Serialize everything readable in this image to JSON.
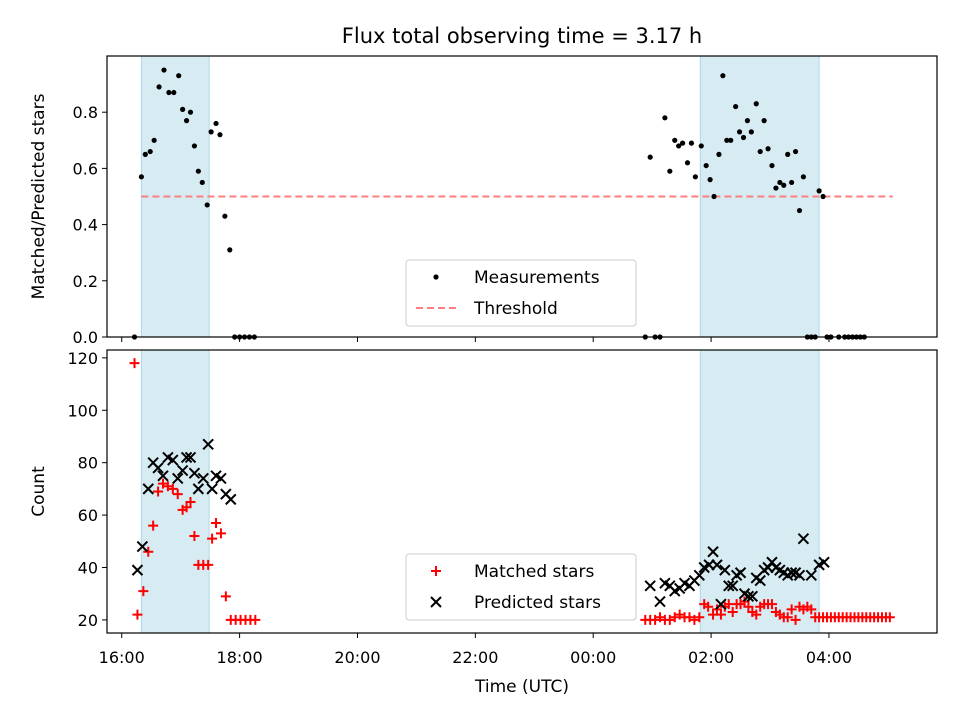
{
  "title": "Flux total observing time = 3.17 h",
  "xlabel": "Time (UTC)",
  "chart_data": [
    {
      "type": "scatter",
      "ylabel": "Matched/Predicted stars",
      "ylim": [
        0,
        1.0
      ],
      "yticks": [
        0.0,
        0.2,
        0.4,
        0.6,
        0.8
      ],
      "ytick_labels": [
        "0.0",
        "0.2",
        "0.4",
        "0.6",
        "0.8"
      ],
      "xlim": [
        "15:45",
        "05:50"
      ],
      "shaded_spans": [
        [
          "16:20",
          "17:29"
        ],
        [
          "01:49",
          "03:50"
        ]
      ],
      "shade_color": "#add8e6",
      "threshold": {
        "name": "Threshold",
        "value": 0.5,
        "x_range": [
          "16:20",
          "05:05"
        ],
        "color": "#ff7f7f",
        "style": "dashed"
      },
      "legend": {
        "position": "lower-center",
        "entries": [
          "Measurements",
          "Threshold"
        ]
      },
      "series": [
        {
          "name": "Measurements",
          "marker": "dot",
          "color": "#000000",
          "points": [
            [
              "16:13",
              0.0
            ],
            [
              "16:20",
              0.57
            ],
            [
              "16:24",
              0.65
            ],
            [
              "16:29",
              0.66
            ],
            [
              "16:33",
              0.7
            ],
            [
              "16:38",
              0.89
            ],
            [
              "16:43",
              0.95
            ],
            [
              "16:48",
              0.87
            ],
            [
              "16:53",
              0.87
            ],
            [
              "16:58",
              0.93
            ],
            [
              "17:02",
              0.81
            ],
            [
              "17:06",
              0.77
            ],
            [
              "17:10",
              0.8
            ],
            [
              "17:14",
              0.68
            ],
            [
              "17:18",
              0.59
            ],
            [
              "17:22",
              0.55
            ],
            [
              "17:27",
              0.47
            ],
            [
              "17:31",
              0.73
            ],
            [
              "17:36",
              0.76
            ],
            [
              "17:40",
              0.72
            ],
            [
              "17:45",
              0.43
            ],
            [
              "17:50",
              0.31
            ],
            [
              "17:55",
              0.0
            ],
            [
              "18:00",
              0.0
            ],
            [
              "18:05",
              0.0
            ],
            [
              "18:10",
              0.0
            ],
            [
              "18:15",
              0.0
            ],
            [
              "00:53",
              0.0
            ],
            [
              "00:58",
              0.64
            ],
            [
              "01:03",
              0.0
            ],
            [
              "01:08",
              0.0
            ],
            [
              "01:13",
              0.78
            ],
            [
              "01:18",
              0.59
            ],
            [
              "01:23",
              0.7
            ],
            [
              "01:27",
              0.68
            ],
            [
              "01:31",
              0.69
            ],
            [
              "01:36",
              0.62
            ],
            [
              "01:40",
              0.69
            ],
            [
              "01:44",
              0.57
            ],
            [
              "01:50",
              0.68
            ],
            [
              "01:55",
              0.61
            ],
            [
              "01:59",
              0.56
            ],
            [
              "02:03",
              0.5
            ],
            [
              "02:08",
              0.65
            ],
            [
              "02:12",
              0.93
            ],
            [
              "02:16",
              0.7
            ],
            [
              "02:20",
              0.7
            ],
            [
              "02:25",
              0.82
            ],
            [
              "02:29",
              0.73
            ],
            [
              "02:33",
              0.71
            ],
            [
              "02:37",
              0.77
            ],
            [
              "02:41",
              0.73
            ],
            [
              "02:46",
              0.83
            ],
            [
              "02:50",
              0.66
            ],
            [
              "02:54",
              0.77
            ],
            [
              "02:58",
              0.67
            ],
            [
              "03:02",
              0.61
            ],
            [
              "03:06",
              0.53
            ],
            [
              "03:10",
              0.55
            ],
            [
              "03:14",
              0.54
            ],
            [
              "03:18",
              0.65
            ],
            [
              "03:22",
              0.55
            ],
            [
              "03:26",
              0.66
            ],
            [
              "03:30",
              0.45
            ],
            [
              "03:34",
              0.57
            ],
            [
              "03:38",
              0.0
            ],
            [
              "03:42",
              0.0
            ],
            [
              "03:46",
              0.0
            ],
            [
              "03:50",
              0.52
            ],
            [
              "03:54",
              0.5
            ],
            [
              "03:58",
              0.0
            ],
            [
              "04:02",
              0.0
            ],
            [
              "04:10",
              0.0
            ],
            [
              "04:16",
              0.0
            ],
            [
              "04:20",
              0.0
            ],
            [
              "04:24",
              0.0
            ],
            [
              "04:28",
              0.0
            ],
            [
              "04:32",
              0.0
            ],
            [
              "04:36",
              0.0
            ]
          ]
        }
      ]
    },
    {
      "type": "scatter",
      "ylabel": "Count",
      "ylim": [
        15,
        123
      ],
      "yticks": [
        20,
        40,
        60,
        80,
        100,
        120
      ],
      "ytick_labels": [
        "20",
        "40",
        "60",
        "80",
        "100",
        "120"
      ],
      "xlim": [
        "15:45",
        "05:50"
      ],
      "xticks": [
        "16:00",
        "18:00",
        "20:00",
        "22:00",
        "00:00",
        "02:00",
        "04:00"
      ],
      "xtick_labels": [
        "16:00",
        "18:00",
        "20:00",
        "22:00",
        "00:00",
        "02:00",
        "04:00"
      ],
      "shaded_spans": [
        [
          "16:20",
          "17:29"
        ],
        [
          "01:49",
          "03:50"
        ]
      ],
      "shade_color": "#add8e6",
      "legend": {
        "position": "lower-center",
        "entries": [
          "Matched stars",
          "Predicted stars"
        ]
      },
      "series": [
        {
          "name": "Matched stars",
          "marker": "plus",
          "color": "#ff0000",
          "points": [
            [
              "16:13",
              118
            ],
            [
              "16:16",
              22
            ],
            [
              "16:22",
              31
            ],
            [
              "16:27",
              46
            ],
            [
              "16:32",
              56
            ],
            [
              "16:37",
              69
            ],
            [
              "16:42",
              72
            ],
            [
              "16:47",
              71
            ],
            [
              "16:52",
              70
            ],
            [
              "16:57",
              68
            ],
            [
              "17:02",
              62
            ],
            [
              "17:06",
              63
            ],
            [
              "17:10",
              65
            ],
            [
              "17:14",
              52
            ],
            [
              "17:18",
              41
            ],
            [
              "17:23",
              41
            ],
            [
              "17:28",
              41
            ],
            [
              "17:32",
              51
            ],
            [
              "17:36",
              57
            ],
            [
              "17:41",
              53
            ],
            [
              "17:46",
              29
            ],
            [
              "17:51",
              20
            ],
            [
              "17:56",
              20
            ],
            [
              "18:01",
              20
            ],
            [
              "18:06",
              20
            ],
            [
              "18:11",
              20
            ],
            [
              "18:16",
              20
            ],
            [
              "00:53",
              20
            ],
            [
              "00:58",
              20
            ],
            [
              "01:03",
              20
            ],
            [
              "01:08",
              21
            ],
            [
              "01:13",
              20
            ],
            [
              "01:18",
              20
            ],
            [
              "01:23",
              21
            ],
            [
              "01:28",
              22
            ],
            [
              "01:33",
              21
            ],
            [
              "01:38",
              21
            ],
            [
              "01:43",
              20
            ],
            [
              "01:48",
              21
            ],
            [
              "01:53",
              26
            ],
            [
              "01:57",
              25
            ],
            [
              "02:02",
              22
            ],
            [
              "02:06",
              24
            ],
            [
              "02:10",
              22
            ],
            [
              "02:14",
              25
            ],
            [
              "02:18",
              26
            ],
            [
              "02:22",
              23
            ],
            [
              "02:26",
              26
            ],
            [
              "02:30",
              26
            ],
            [
              "02:34",
              27
            ],
            [
              "02:38",
              25
            ],
            [
              "02:42",
              23
            ],
            [
              "02:46",
              22
            ],
            [
              "02:50",
              25
            ],
            [
              "02:54",
              26
            ],
            [
              "02:58",
              26
            ],
            [
              "03:02",
              26
            ],
            [
              "03:06",
              23
            ],
            [
              "03:10",
              22
            ],
            [
              "03:14",
              21
            ],
            [
              "03:18",
              21
            ],
            [
              "03:22",
              24
            ],
            [
              "03:26",
              20
            ],
            [
              "03:30",
              25
            ],
            [
              "03:34",
              24
            ],
            [
              "03:38",
              25
            ],
            [
              "03:42",
              24
            ],
            [
              "03:46",
              21
            ],
            [
              "03:50",
              21
            ],
            [
              "03:54",
              21
            ],
            [
              "03:58",
              21
            ],
            [
              "04:02",
              21
            ],
            [
              "04:06",
              21
            ],
            [
              "04:10",
              21
            ],
            [
              "04:14",
              21
            ],
            [
              "04:18",
              21
            ],
            [
              "04:22",
              21
            ],
            [
              "04:26",
              21
            ],
            [
              "04:30",
              21
            ],
            [
              "04:34",
              21
            ],
            [
              "04:38",
              21
            ],
            [
              "04:42",
              21
            ],
            [
              "04:46",
              21
            ],
            [
              "04:50",
              21
            ],
            [
              "04:54",
              21
            ],
            [
              "04:58",
              21
            ],
            [
              "05:02",
              21
            ]
          ]
        },
        {
          "name": "Predicted stars",
          "marker": "x",
          "color": "#000000",
          "points": [
            [
              "16:16",
              39
            ],
            [
              "16:21",
              48
            ],
            [
              "16:27",
              70
            ],
            [
              "16:32",
              80
            ],
            [
              "16:37",
              78
            ],
            [
              "16:42",
              75
            ],
            [
              "16:47",
              82
            ],
            [
              "16:52",
              81
            ],
            [
              "16:57",
              74
            ],
            [
              "17:02",
              77
            ],
            [
              "17:06",
              82
            ],
            [
              "17:10",
              82
            ],
            [
              "17:14",
              76
            ],
            [
              "17:18",
              70
            ],
            [
              "17:23",
              74
            ],
            [
              "17:28",
              87
            ],
            [
              "17:32",
              70
            ],
            [
              "17:36",
              75
            ],
            [
              "17:41",
              74
            ],
            [
              "17:46",
              68
            ],
            [
              "17:51",
              66
            ],
            [
              "00:58",
              33
            ],
            [
              "01:08",
              27
            ],
            [
              "01:13",
              34
            ],
            [
              "01:18",
              33
            ],
            [
              "01:23",
              31
            ],
            [
              "01:28",
              32
            ],
            [
              "01:33",
              34
            ],
            [
              "01:38",
              33
            ],
            [
              "01:43",
              35
            ],
            [
              "01:48",
              37
            ],
            [
              "01:53",
              40
            ],
            [
              "01:58",
              41
            ],
            [
              "02:02",
              46
            ],
            [
              "02:06",
              41
            ],
            [
              "02:10",
              26
            ],
            [
              "02:14",
              39
            ],
            [
              "02:18",
              33
            ],
            [
              "02:22",
              33
            ],
            [
              "02:26",
              37
            ],
            [
              "02:30",
              38
            ],
            [
              "02:34",
              30
            ],
            [
              "02:38",
              29
            ],
            [
              "02:42",
              29
            ],
            [
              "02:46",
              36
            ],
            [
              "02:50",
              35
            ],
            [
              "02:54",
              39
            ],
            [
              "02:58",
              40
            ],
            [
              "03:02",
              42
            ],
            [
              "03:06",
              40
            ],
            [
              "03:10",
              39
            ],
            [
              "03:14",
              38
            ],
            [
              "03:18",
              37
            ],
            [
              "03:22",
              38
            ],
            [
              "03:26",
              38
            ],
            [
              "03:30",
              37
            ],
            [
              "03:34",
              51
            ],
            [
              "03:42",
              37
            ],
            [
              "03:50",
              41
            ],
            [
              "03:55",
              42
            ]
          ]
        }
      ]
    }
  ]
}
